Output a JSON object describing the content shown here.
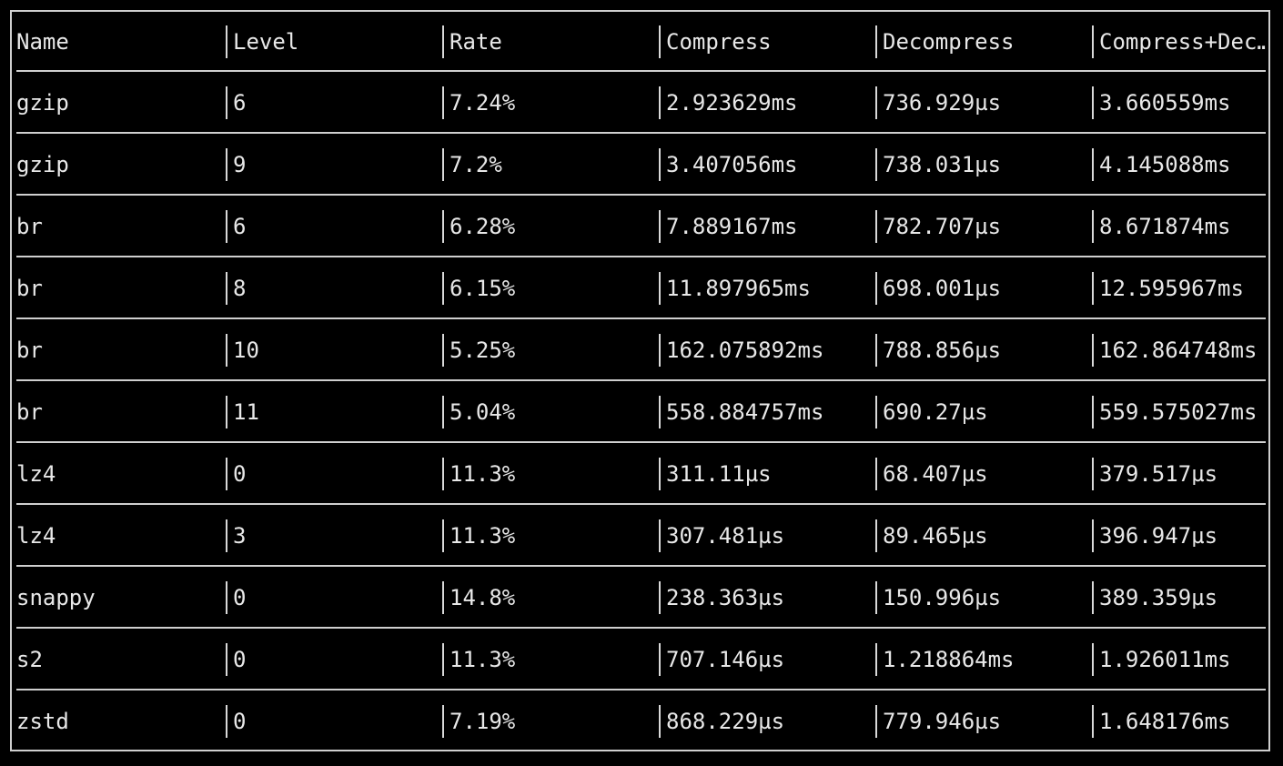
{
  "table": {
    "headers": [
      "Name",
      "Level",
      "Rate",
      "Compress",
      "Decompress",
      "Compress+Dec…"
    ],
    "rows": [
      [
        "gzip",
        "6",
        "7.24%",
        "2.923629ms",
        "736.929µs",
        "3.660559ms"
      ],
      [
        "gzip",
        "9",
        "7.2%",
        "3.407056ms",
        "738.031µs",
        "4.145088ms"
      ],
      [
        "br",
        "6",
        "6.28%",
        "7.889167ms",
        "782.707µs",
        "8.671874ms"
      ],
      [
        "br",
        "8",
        "6.15%",
        "11.897965ms",
        "698.001µs",
        "12.595967ms"
      ],
      [
        "br",
        "10",
        "5.25%",
        "162.075892ms",
        "788.856µs",
        "162.864748ms"
      ],
      [
        "br",
        "11",
        "5.04%",
        "558.884757ms",
        "690.27µs",
        "559.575027ms"
      ],
      [
        "lz4",
        "0",
        "11.3%",
        "311.11µs",
        "68.407µs",
        "379.517µs"
      ],
      [
        "lz4",
        "3",
        "11.3%",
        "307.481µs",
        "89.465µs",
        "396.947µs"
      ],
      [
        "snappy",
        "0",
        "14.8%",
        "238.363µs",
        "150.996µs",
        "389.359µs"
      ],
      [
        "s2",
        "0",
        "11.3%",
        "707.146µs",
        "1.218864ms",
        "1.926011ms"
      ],
      [
        "zstd",
        "0",
        "7.19%",
        "868.229µs",
        "779.946µs",
        "1.648176ms"
      ]
    ]
  },
  "colors": {
    "background": "#000000",
    "text": "#e8e8e8",
    "border": "#cfcfcf"
  }
}
